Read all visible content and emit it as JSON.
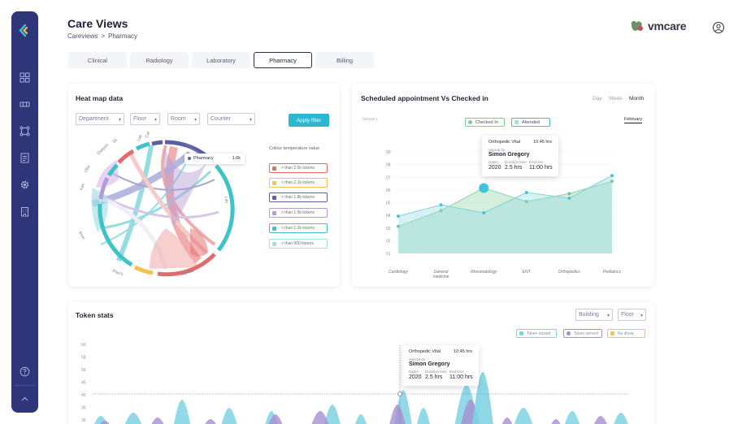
{
  "header": {
    "title": "Care Views",
    "breadcrumb": [
      "Careviews",
      "Pharmacy"
    ],
    "brand": "vmcare"
  },
  "tabs": [
    "Clinical",
    "Radiology",
    "Laboratory",
    "Pharmacy",
    "Billing"
  ],
  "heatmap": {
    "title": "Heat map data",
    "filters": [
      "Department",
      "Floor",
      "Room",
      "Counter"
    ],
    "apply_label": "Apply filter",
    "arc_labels": [
      "Cat",
      "Lab",
      "Sil",
      "Dialysis",
      "Obe",
      "Kau",
      "Bron",
      "Psych",
      "SP",
      "Lab",
      "Ph",
      "Rehab",
      "Cath lab",
      "Pharmacy",
      "Lab",
      "Ob"
    ],
    "hover_label": "Pharmacy",
    "hover_value": "1.0k",
    "legend_title": "Colour temperature value",
    "legend": [
      {
        "label": "> than 2.5k tokens",
        "color": "#e26b6b"
      },
      {
        "label": "> than 2.1k tokens",
        "color": "#f2c24b"
      },
      {
        "label": "> than 1.8k tokens",
        "color": "#5a5fa8"
      },
      {
        "label": "> than 1.5k tokens",
        "color": "#b59ad3"
      },
      {
        "label": "> than 1.2k tokens",
        "color": "#3ec3c9"
      },
      {
        "label": "> than 900 tokens",
        "color": "#9fe0e3"
      }
    ]
  },
  "appointments": {
    "title": "Scheduled appointment  Vs Checked in",
    "periods": [
      "Day",
      "Week",
      "Month"
    ],
    "months": [
      "January",
      "February"
    ],
    "series_chips": [
      "Checked In",
      "Attended"
    ],
    "tooltip": {
      "dept": "Orthopedic Vital",
      "time": "10:45 hrs",
      "served_by_label": "Served by",
      "name": "Simon Gregory",
      "year_label": "Dates",
      "year": "2020",
      "duration_label": "Duration time",
      "duration": "2.5 hrs",
      "end_label": "End time",
      "end": "11:00 hrs"
    }
  },
  "chart_data": [
    {
      "type": "area",
      "categories": [
        "Cardiology",
        "General medicine",
        "Rheumatology",
        "ENT",
        "Orthopedics",
        "Pediatrics"
      ],
      "y_ticks": [
        "09",
        "08",
        "07",
        "06",
        "05",
        "04",
        "03",
        "02",
        "01"
      ],
      "series": [
        {
          "name": "Checked In",
          "values": [
            3.3,
            4.3,
            3.6,
            5.4,
            4.9,
            6.9
          ]
        },
        {
          "name": "Attended",
          "values": [
            2.4,
            3.8,
            5.8,
            4.6,
            5.3,
            6.4
          ]
        }
      ]
    },
    {
      "type": "area",
      "y_ticks": [
        "60",
        "55",
        "50",
        "45",
        "40",
        "35",
        "30",
        "25"
      ],
      "legend": [
        "Token issued",
        "Token served",
        "No show"
      ]
    }
  ],
  "token_stats": {
    "title": "Token stats",
    "filters": [
      "Building",
      "Floor"
    ],
    "legend": [
      {
        "label": "Token issued",
        "color": "#7fd4e3"
      },
      {
        "label": "Token served",
        "color": "#a68fd0"
      },
      {
        "label": "No show",
        "color": "#f3c06a"
      }
    ],
    "tooltip": {
      "dept": "Orthopedic Vital",
      "time": "10:45 hrs",
      "served_by_label": "Served by",
      "name": "Simon Gregory",
      "year_label": "Dates",
      "year": "2020",
      "duration_label": "Duration time",
      "duration": "2.5 hrs",
      "end_label": "End time",
      "end": "11:00 hrs"
    }
  },
  "colors": {
    "sidebar": "#2f3579",
    "accent": "#2bb7cf",
    "checked": "#3ec3c9",
    "attended": "#7ccf9a"
  },
  "icons": [
    "logo-icon",
    "dashboard-icon",
    "beds-icon",
    "network-icon",
    "list-icon",
    "settings-icon",
    "building-icon",
    "help-icon",
    "chevron-up-icon",
    "user-icon"
  ]
}
